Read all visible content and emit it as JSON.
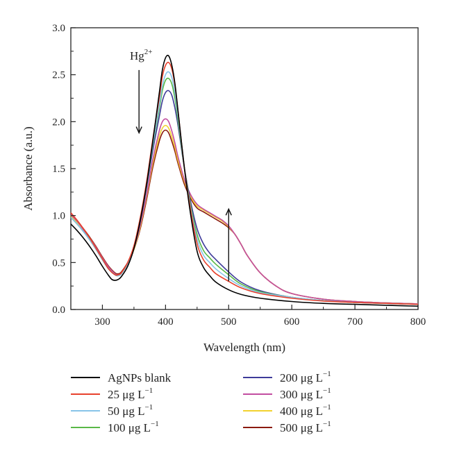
{
  "chart_data": {
    "type": "line",
    "xlabel": "Wavelength (nm)",
    "ylabel": "Absorbance (a.u.)",
    "xlim": [
      250,
      800
    ],
    "ylim": [
      0.0,
      3.0
    ],
    "xticks": [
      300,
      400,
      500,
      600,
      700,
      800
    ],
    "yticks": [
      "0.0",
      "0.5",
      "1.0",
      "1.5",
      "2.0",
      "2.5",
      "3.0"
    ],
    "grid": false,
    "legend_position": "bottom",
    "annotations": {
      "hg_label": "Hg",
      "hg_superscript": "2+",
      "down_arrow_at": {
        "x": 358,
        "y_from": 2.55,
        "y_to": 1.88
      },
      "up_arrow_at": {
        "x": 500,
        "y_from": 0.3,
        "y_to": 1.07
      }
    },
    "series": [
      {
        "name": "AgNPs blank",
        "color": "#000000",
        "x": [
          250,
          260,
          270,
          280,
          290,
          300,
          310,
          315,
          320,
          325,
          330,
          340,
          350,
          360,
          370,
          380,
          390,
          395,
          400,
          405,
          410,
          415,
          420,
          430,
          440,
          450,
          460,
          470,
          480,
          500,
          520,
          550,
          600,
          650,
          700,
          750,
          800
        ],
        "y": [
          0.91,
          0.84,
          0.76,
          0.67,
          0.57,
          0.46,
          0.36,
          0.32,
          0.31,
          0.32,
          0.35,
          0.46,
          0.65,
          0.95,
          1.33,
          1.8,
          2.3,
          2.55,
          2.68,
          2.7,
          2.6,
          2.4,
          2.1,
          1.5,
          1.0,
          0.62,
          0.45,
          0.36,
          0.29,
          0.21,
          0.16,
          0.12,
          0.085,
          0.065,
          0.055,
          0.045,
          0.035
        ]
      },
      {
        "name": "25 μg L−1",
        "color": "#e8412c",
        "x": [
          250,
          260,
          270,
          280,
          290,
          300,
          310,
          320,
          325,
          330,
          340,
          350,
          360,
          370,
          380,
          390,
          395,
          400,
          405,
          410,
          415,
          420,
          430,
          440,
          450,
          460,
          470,
          480,
          500,
          520,
          550,
          600,
          650,
          700,
          750,
          800
        ],
        "y": [
          1.03,
          0.95,
          0.86,
          0.76,
          0.65,
          0.54,
          0.43,
          0.37,
          0.37,
          0.39,
          0.5,
          0.68,
          0.98,
          1.36,
          1.82,
          2.25,
          2.48,
          2.6,
          2.63,
          2.56,
          2.38,
          2.1,
          1.5,
          1.05,
          0.7,
          0.53,
          0.45,
          0.38,
          0.3,
          0.23,
          0.17,
          0.12,
          0.09,
          0.075,
          0.065,
          0.055
        ]
      },
      {
        "name": "50 μg L−1",
        "color": "#87c4e8",
        "x": [
          250,
          260,
          270,
          280,
          290,
          300,
          310,
          320,
          325,
          330,
          340,
          350,
          360,
          370,
          380,
          390,
          395,
          400,
          405,
          410,
          415,
          420,
          430,
          440,
          450,
          460,
          470,
          480,
          500,
          520,
          550,
          600,
          650,
          700,
          750,
          800
        ],
        "y": [
          0.98,
          0.91,
          0.83,
          0.74,
          0.64,
          0.53,
          0.43,
          0.37,
          0.36,
          0.38,
          0.49,
          0.67,
          0.96,
          1.33,
          1.77,
          2.17,
          2.38,
          2.5,
          2.53,
          2.47,
          2.3,
          2.05,
          1.5,
          1.07,
          0.75,
          0.58,
          0.5,
          0.43,
          0.33,
          0.25,
          0.18,
          0.13,
          0.095,
          0.075,
          0.065,
          0.055
        ]
      },
      {
        "name": "100 μg L−1",
        "color": "#59b847",
        "x": [
          250,
          260,
          270,
          280,
          290,
          300,
          310,
          320,
          325,
          330,
          340,
          350,
          360,
          370,
          380,
          390,
          395,
          400,
          405,
          410,
          415,
          420,
          430,
          440,
          450,
          460,
          470,
          480,
          500,
          520,
          550,
          600,
          650,
          700,
          750,
          800
        ],
        "y": [
          0.98,
          0.91,
          0.83,
          0.74,
          0.64,
          0.53,
          0.43,
          0.37,
          0.36,
          0.38,
          0.49,
          0.67,
          0.95,
          1.32,
          1.75,
          2.13,
          2.33,
          2.44,
          2.46,
          2.4,
          2.24,
          2.0,
          1.5,
          1.1,
          0.8,
          0.63,
          0.55,
          0.48,
          0.37,
          0.27,
          0.19,
          0.13,
          0.095,
          0.075,
          0.065,
          0.055
        ]
      },
      {
        "name": "200 μg L−1",
        "color": "#3d3a99",
        "x": [
          250,
          260,
          270,
          280,
          290,
          300,
          310,
          320,
          325,
          330,
          340,
          350,
          360,
          370,
          380,
          390,
          395,
          400,
          405,
          410,
          415,
          420,
          430,
          440,
          450,
          460,
          470,
          480,
          500,
          520,
          550,
          600,
          650,
          700,
          750,
          800
        ],
        "y": [
          0.98,
          0.91,
          0.83,
          0.74,
          0.64,
          0.53,
          0.43,
          0.37,
          0.36,
          0.38,
          0.49,
          0.66,
          0.94,
          1.3,
          1.7,
          2.05,
          2.22,
          2.31,
          2.33,
          2.28,
          2.14,
          1.95,
          1.5,
          1.14,
          0.86,
          0.7,
          0.6,
          0.53,
          0.4,
          0.29,
          0.2,
          0.13,
          0.095,
          0.075,
          0.065,
          0.055
        ]
      },
      {
        "name": "300 μg L−1",
        "color": "#c24da0",
        "x": [
          250,
          260,
          270,
          280,
          290,
          300,
          310,
          320,
          325,
          330,
          340,
          350,
          360,
          370,
          380,
          390,
          395,
          400,
          405,
          410,
          415,
          420,
          430,
          440,
          450,
          460,
          470,
          480,
          490,
          500,
          510,
          520,
          530,
          550,
          575,
          600,
          650,
          700,
          750,
          800
        ],
        "y": [
          1.01,
          0.94,
          0.85,
          0.76,
          0.66,
          0.55,
          0.45,
          0.38,
          0.37,
          0.39,
          0.49,
          0.65,
          0.9,
          1.22,
          1.6,
          1.9,
          2.0,
          2.03,
          2.0,
          1.9,
          1.77,
          1.62,
          1.38,
          1.22,
          1.12,
          1.07,
          1.03,
          0.99,
          0.95,
          0.89,
          0.8,
          0.69,
          0.57,
          0.39,
          0.25,
          0.17,
          0.11,
          0.085,
          0.07,
          0.06
        ]
      },
      {
        "name": "400 μg L−1",
        "color": "#f2d22e",
        "x": [
          250,
          260,
          270,
          280,
          290,
          300,
          310,
          320,
          325,
          330,
          340,
          350,
          360,
          370,
          380,
          390,
          395,
          400,
          405,
          410,
          415,
          420,
          430,
          440,
          450,
          460,
          470,
          480,
          490,
          500,
          510,
          520,
          530,
          550,
          575,
          600,
          650,
          700,
          750,
          800
        ],
        "y": [
          1.0,
          0.93,
          0.85,
          0.76,
          0.66,
          0.55,
          0.45,
          0.38,
          0.37,
          0.39,
          0.49,
          0.64,
          0.88,
          1.2,
          1.56,
          1.84,
          1.93,
          1.96,
          1.93,
          1.84,
          1.72,
          1.58,
          1.36,
          1.2,
          1.1,
          1.06,
          1.02,
          0.98,
          0.94,
          0.88,
          0.8,
          0.69,
          0.57,
          0.39,
          0.25,
          0.17,
          0.11,
          0.085,
          0.07,
          0.06
        ]
      },
      {
        "name": "500 μg L−1",
        "color": "#8b1a0e",
        "x": [
          250,
          260,
          270,
          280,
          290,
          300,
          310,
          320,
          325,
          330,
          340,
          350,
          360,
          370,
          380,
          390,
          395,
          400,
          405,
          410,
          415,
          420,
          430,
          440,
          450,
          460,
          470,
          480,
          490,
          500,
          510,
          520,
          530,
          550,
          575,
          600,
          650,
          700,
          750,
          800
        ],
        "y": [
          1.01,
          0.94,
          0.86,
          0.77,
          0.67,
          0.56,
          0.46,
          0.39,
          0.38,
          0.4,
          0.5,
          0.64,
          0.86,
          1.17,
          1.52,
          1.79,
          1.88,
          1.91,
          1.88,
          1.79,
          1.68,
          1.55,
          1.33,
          1.18,
          1.08,
          1.04,
          1.0,
          0.96,
          0.92,
          0.87,
          0.8,
          0.69,
          0.57,
          0.39,
          0.25,
          0.17,
          0.11,
          0.085,
          0.07,
          0.06
        ]
      }
    ],
    "legend_labels": [
      {
        "main": "AgNPs blank",
        "sup": ""
      },
      {
        "main": "25 μg L",
        "sup": "−1"
      },
      {
        "main": "50 μg L",
        "sup": "−1"
      },
      {
        "main": "100 μg L",
        "sup": "−1"
      },
      {
        "main": "200 μg L",
        "sup": "−1"
      },
      {
        "main": "300 μg L",
        "sup": "−1"
      },
      {
        "main": "400 μg L",
        "sup": "−1"
      },
      {
        "main": "500 μg L",
        "sup": "−1"
      }
    ]
  }
}
